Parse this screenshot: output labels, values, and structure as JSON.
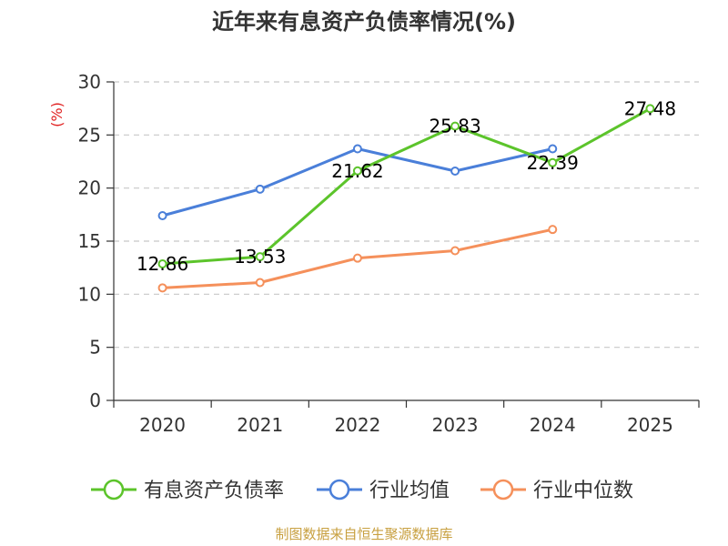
{
  "chart_data": {
    "type": "line",
    "title": "近年来有息资产负债率情况(%)",
    "xlabel": "",
    "ylabel": "(%)",
    "ylabel_color": "#e02020",
    "categories": [
      "2020",
      "2021",
      "2022",
      "2023",
      "2024",
      "2025"
    ],
    "ylim": [
      0,
      30
    ],
    "yticks": [
      0,
      5,
      10,
      15,
      20,
      25,
      30
    ],
    "grid": true,
    "legend_position": "bottom",
    "series": [
      {
        "name": "有息资产负债率",
        "color": "#5cc42b",
        "values": [
          12.86,
          13.53,
          21.62,
          25.83,
          22.39,
          27.48
        ],
        "labels": [
          "12.86",
          "13.53",
          "21.62",
          "25.83",
          "22.39",
          "27.48"
        ]
      },
      {
        "name": "行业均值",
        "color": "#4a7fd9",
        "values": [
          17.4,
          19.9,
          23.7,
          21.6,
          23.7,
          null
        ]
      },
      {
        "name": "行业中位数",
        "color": "#f5905b",
        "values": [
          10.6,
          11.1,
          13.4,
          14.1,
          16.1,
          null
        ]
      }
    ]
  },
  "footer": {
    "source": "制图数据来自恒生聚源数据库",
    "source_color": "#c8a040"
  }
}
